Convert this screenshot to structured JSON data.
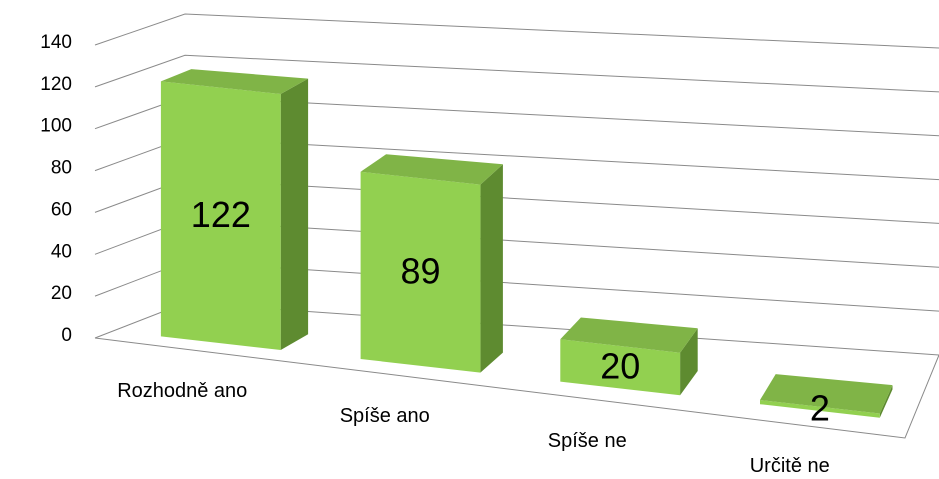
{
  "chart_data": {
    "type": "bar",
    "categories": [
      "Rozhodně ano",
      "Spíše ano",
      "Spíše ne",
      "Určitě ne"
    ],
    "values": [
      122,
      89,
      20,
      2
    ],
    "color": "#92d050",
    "ylim": [
      0,
      140
    ],
    "yticks": [
      0,
      20,
      40,
      60,
      80,
      100,
      120,
      140
    ],
    "grid": true
  }
}
